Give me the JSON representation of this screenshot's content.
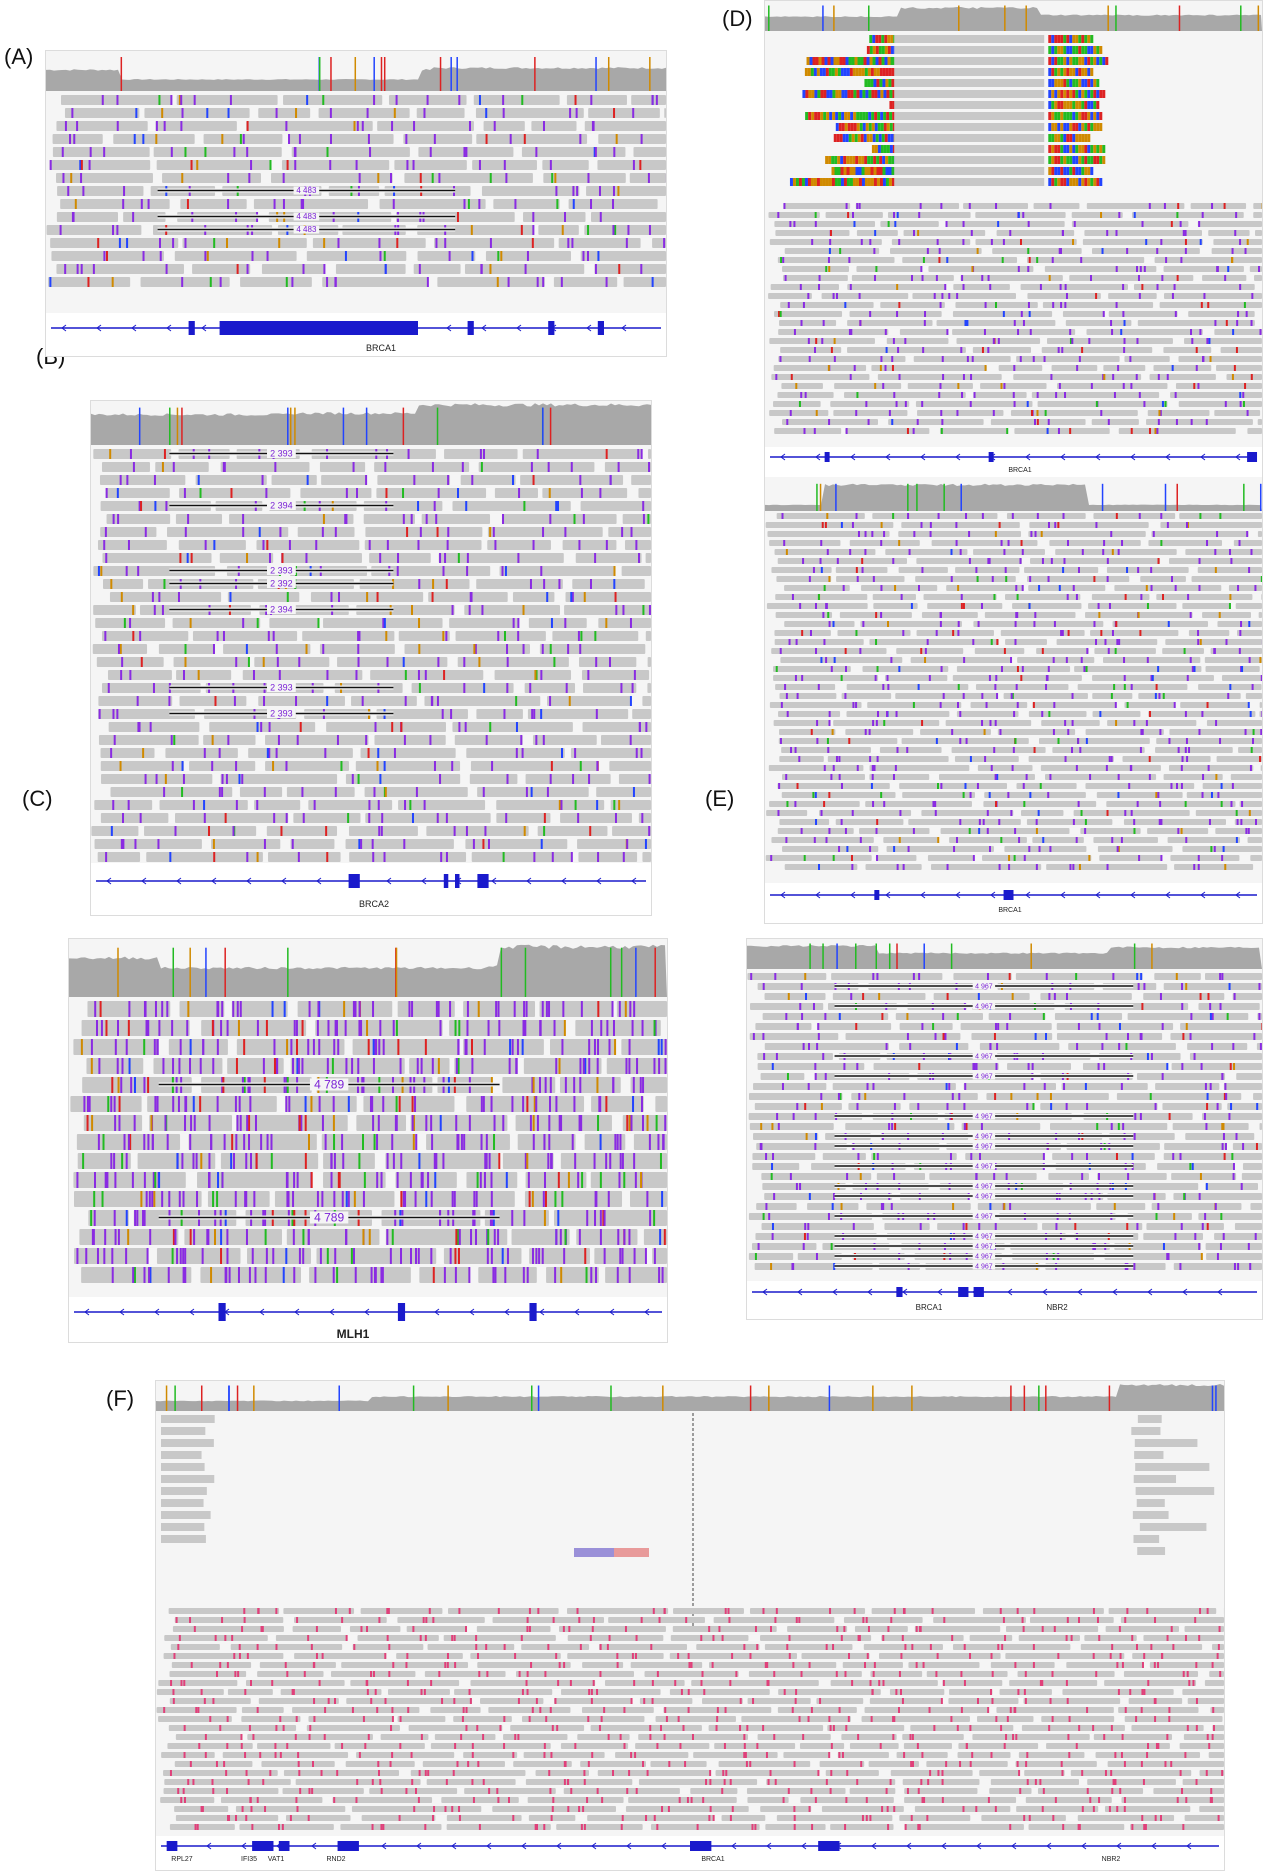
{
  "panels": [
    {
      "id": "A",
      "label": "(A)",
      "genes": [
        "BRCA1"
      ],
      "deletion_size": "4 483",
      "deletion_count": 3
    },
    {
      "id": "B",
      "label": "(B)",
      "genes": [
        "BRCA2"
      ],
      "deletion_sizes": [
        "2 393",
        "2 394",
        "2 393",
        "2 392",
        "2 394",
        "2 393",
        "2 393"
      ]
    },
    {
      "id": "C",
      "label": "(C)",
      "genes": [
        "MLH1"
      ],
      "deletion_size": "4 789",
      "deletion_count": 2
    },
    {
      "id": "D",
      "label": "(D)",
      "genes": [
        "BRCA1",
        "BRCA1"
      ]
    },
    {
      "id": "E",
      "label": "(E)",
      "genes": [
        "BRCA1",
        "NBR2"
      ],
      "deletion_size": "4 967",
      "deletion_count": 15
    },
    {
      "id": "F",
      "label": "(F)",
      "genes": [
        "RPL27",
        "IFI35",
        "VAT1",
        "RND2",
        "BRCA1",
        "NBR2"
      ]
    }
  ],
  "colors": {
    "coverage": "#a8a8a8",
    "read": "#c8c8c8",
    "insertion": "#8a2be2",
    "gene": "#1a1acc",
    "mismatch_a": "#22bb22",
    "mismatch_c": "#2244ff",
    "mismatch_g": "#d08a00",
    "mismatch_t": "#dd2222",
    "soft_pink": "#e0407a"
  }
}
